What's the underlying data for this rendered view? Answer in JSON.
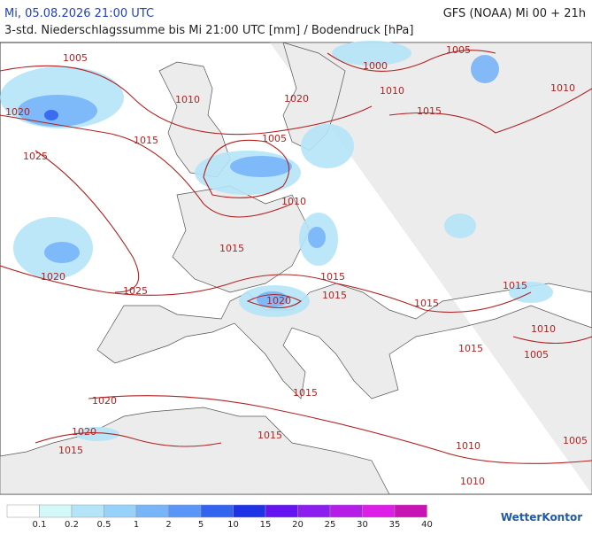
{
  "header": {
    "title": "Mi, 05.08.2026 21:00 UTC",
    "subtitle": "3-std. Niederschlagssumme bis Mi 21:00 UTC [mm] / Bodendruck [hPa]",
    "model": "GFS (NOAA) Mi 00 + 21h"
  },
  "isobars": {
    "labels": [
      "1005",
      "1000",
      "1005",
      "1010",
      "1020",
      "1010",
      "1010",
      "1015",
      "1020",
      "1015",
      "1005",
      "1025",
      "1010",
      "1015",
      "1020",
      "1025",
      "1015",
      "1015",
      "1020",
      "1015",
      "1015",
      "1010",
      "1015",
      "1005",
      "1015",
      "1020",
      "1020",
      "1015",
      "1015",
      "1010",
      "1005",
      "1010"
    ]
  },
  "legend": {
    "items": [
      {
        "label": "0.1",
        "color": "#ffffff"
      },
      {
        "label": "0.2",
        "color": "#d2f8f8"
      },
      {
        "label": "0.5",
        "color": "#b4e4f8"
      },
      {
        "label": "1",
        "color": "#96d2fa"
      },
      {
        "label": "2",
        "color": "#78b4f8"
      },
      {
        "label": "5",
        "color": "#5a96f8"
      },
      {
        "label": "10",
        "color": "#3264f0"
      },
      {
        "label": "15",
        "color": "#1e32e6"
      },
      {
        "label": "20",
        "color": "#6414f0"
      },
      {
        "label": "25",
        "color": "#8c1ef0"
      },
      {
        "label": "30",
        "color": "#b41ee6"
      },
      {
        "label": "35",
        "color": "#dc1ee6"
      },
      {
        "label": "40",
        "color": "#c814b4"
      }
    ]
  },
  "brand": "WetterKontor"
}
